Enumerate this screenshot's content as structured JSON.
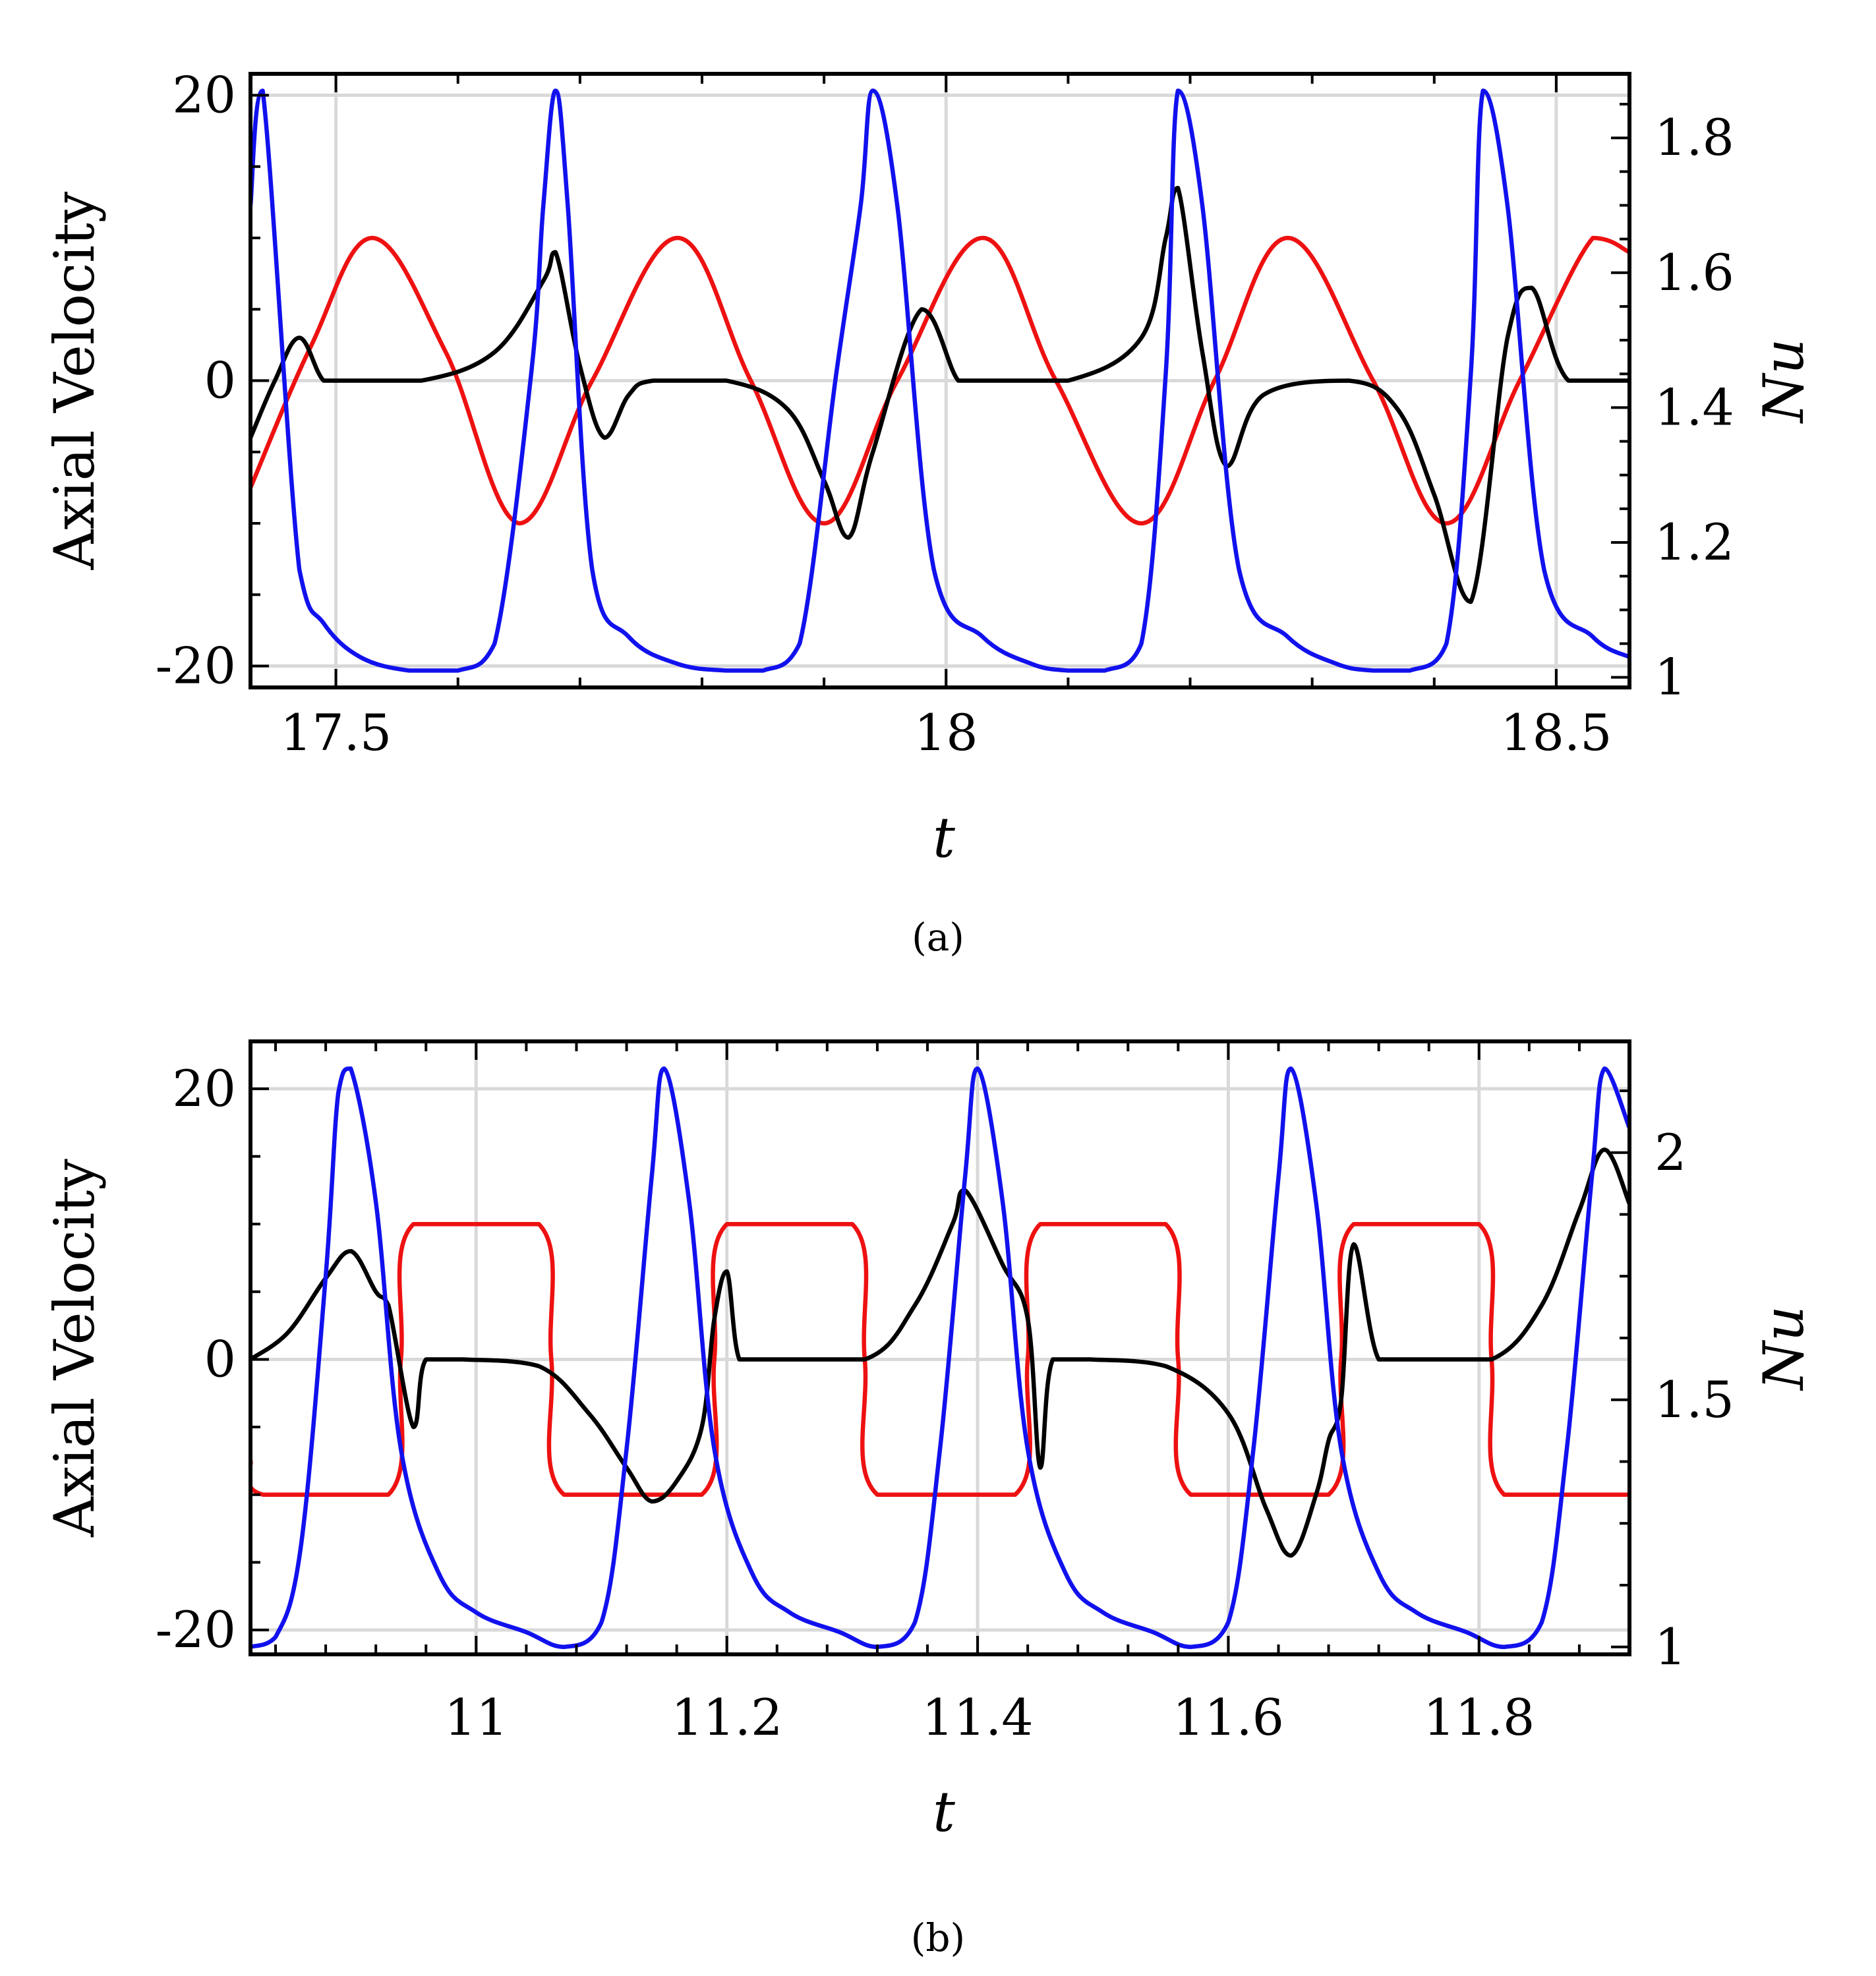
{
  "figure": {
    "captions": [
      "(a)",
      "(b)"
    ]
  },
  "chart_data": [
    {
      "id": "a",
      "type": "line",
      "caption": "(a)",
      "xlabel": "t",
      "ylabel_left": "Axial Velocity",
      "ylabel_right": "Nu",
      "xlim": [
        17.43,
        18.56
      ],
      "ylim_left": [
        -21.5,
        21.5
      ],
      "ylim_right": [
        0.985,
        1.895
      ],
      "x_ticks": [
        17.5,
        18,
        18.5
      ],
      "x_tick_labels": [
        "17.5",
        "18",
        "18.5"
      ],
      "y_left_ticks": [
        -20,
        0,
        20
      ],
      "y_left_tick_labels": [
        "-20",
        "0",
        "20"
      ],
      "y_right_ticks": [
        1,
        1.2,
        1.4,
        1.6,
        1.8
      ],
      "y_right_tick_labels": [
        "1",
        "1.2",
        "1.4",
        "1.6",
        "1.8"
      ],
      "grid": true,
      "series": [
        {
          "name": "red",
          "axis": "left",
          "color": "#ee1111",
          "x": [
            17.43,
            17.48,
            17.53,
            17.59,
            17.65,
            17.71,
            17.78,
            17.84,
            17.9,
            17.96,
            18.03,
            18.09,
            18.16,
            18.22,
            18.28,
            18.35,
            18.41,
            18.47,
            18.53,
            18.56
          ],
          "y": [
            -7.5,
            2.5,
            10,
            2,
            -10,
            0,
            10,
            0,
            -10,
            0,
            10,
            0,
            -10,
            0,
            10,
            0,
            -10,
            0,
            10,
            9
          ]
        },
        {
          "name": "black",
          "axis": "left",
          "color": "#000000",
          "x": [
            17.43,
            17.45,
            17.47,
            17.49,
            17.51,
            17.57,
            17.63,
            17.67,
            17.68,
            17.7,
            17.72,
            17.74,
            17.76,
            17.82,
            17.87,
            17.9,
            17.92,
            17.94,
            17.98,
            18.01,
            18.03,
            18.1,
            18.16,
            18.18,
            18.19,
            18.21,
            18.23,
            18.26,
            18.33,
            18.37,
            18.4,
            18.43,
            18.46,
            18.48,
            18.51,
            18.56
          ],
          "y": [
            -4,
            0,
            3,
            0,
            0,
            0,
            2,
            7,
            9,
            1,
            -4,
            -1,
            0,
            0,
            -2,
            -7,
            -11,
            -5,
            5,
            0,
            0,
            0,
            3,
            10,
            13.5,
            2,
            -6,
            -1,
            0,
            -2,
            -8,
            -15.5,
            3,
            6.5,
            0,
            0
          ]
        },
        {
          "name": "blue",
          "axis": "right",
          "color": "#1111ee",
          "x": [
            17.43,
            17.44,
            17.47,
            17.49,
            17.52,
            17.56,
            17.6,
            17.63,
            17.66,
            17.67,
            17.68,
            17.69,
            17.71,
            17.74,
            17.78,
            17.82,
            17.85,
            17.88,
            17.91,
            17.93,
            17.94,
            17.96,
            17.99,
            18.03,
            18.07,
            18.1,
            18.13,
            18.16,
            18.18,
            18.19,
            18.21,
            18.24,
            18.28,
            18.32,
            18.35,
            18.38,
            18.41,
            18.43,
            18.44,
            18.46,
            18.49,
            18.53,
            18.56
          ],
          "y": [
            1.7,
            1.87,
            1.16,
            1.08,
            1.03,
            1.01,
            1.01,
            1.05,
            1.45,
            1.7,
            1.87,
            1.7,
            1.16,
            1.06,
            1.02,
            1.01,
            1.01,
            1.05,
            1.45,
            1.7,
            1.87,
            1.7,
            1.16,
            1.06,
            1.02,
            1.01,
            1.01,
            1.05,
            1.45,
            1.87,
            1.7,
            1.16,
            1.06,
            1.02,
            1.01,
            1.01,
            1.05,
            1.45,
            1.87,
            1.7,
            1.16,
            1.06,
            1.03
          ]
        }
      ]
    },
    {
      "id": "b",
      "type": "line",
      "caption": "(b)",
      "xlabel": "t",
      "ylabel_left": "Axial Velocity",
      "ylabel_right": "Nu",
      "xlim": [
        10.82,
        11.92
      ],
      "ylim_left": [
        -21.8,
        23.5
      ],
      "ylim_right": [
        0.985,
        2.225
      ],
      "x_ticks": [
        11,
        11.2,
        11.4,
        11.6,
        11.8
      ],
      "x_tick_labels": [
        "11",
        "11.2",
        "11.4",
        "11.6",
        "11.8"
      ],
      "y_left_ticks": [
        -20,
        0,
        20
      ],
      "y_left_tick_labels": [
        "-20",
        "0",
        "20"
      ],
      "y_right_ticks": [
        1,
        1.5,
        2
      ],
      "y_right_tick_labels": [
        "1",
        "1.5",
        "2"
      ],
      "grid": true,
      "series": [
        {
          "name": "red",
          "axis": "left",
          "color": "#ee1111",
          "x": [
            10.82,
            10.83,
            10.93,
            10.94,
            10.95,
            11.05,
            11.06,
            11.07,
            11.18,
            11.19,
            11.2,
            11.3,
            11.31,
            11.32,
            11.43,
            11.44,
            11.45,
            11.55,
            11.56,
            11.57,
            11.68,
            11.69,
            11.7,
            11.8,
            11.81,
            11.82,
            11.92
          ],
          "y": [
            -7.5,
            -10,
            -10,
            0,
            10,
            10,
            0,
            -10,
            -10,
            0,
            10,
            10,
            0,
            -10,
            -10,
            0,
            10,
            10,
            0,
            -10,
            -10,
            0,
            10,
            10,
            0,
            -10,
            -10
          ]
        },
        {
          "name": "black",
          "axis": "left",
          "color": "#000000",
          "x": [
            10.82,
            10.85,
            10.88,
            10.9,
            10.92,
            10.93,
            10.95,
            10.96,
            10.99,
            11.05,
            11.09,
            11.12,
            11.14,
            11.16,
            11.18,
            11.19,
            11.2,
            11.21,
            11.23,
            11.31,
            11.35,
            11.38,
            11.39,
            11.42,
            11.44,
            11.45,
            11.46,
            11.49,
            11.55,
            11.6,
            11.63,
            11.65,
            11.67,
            11.68,
            11.69,
            11.7,
            11.72,
            11.75,
            11.81,
            11.85,
            11.88,
            11.9,
            11.92
          ],
          "y": [
            0,
            2,
            6,
            8,
            5,
            4,
            -5,
            0,
            0,
            -0.5,
            -4,
            -8,
            -10.5,
            -9,
            -5,
            3,
            6.5,
            0,
            0,
            0,
            4,
            10,
            12.5,
            7,
            3,
            -8,
            0,
            0,
            -0.5,
            -4,
            -11,
            -14.5,
            -10,
            -6,
            -3,
            8.5,
            0,
            0,
            0,
            4,
            11,
            15.5,
            11.5
          ]
        },
        {
          "name": "blue",
          "axis": "right",
          "color": "#1111ee",
          "x": [
            10.82,
            10.84,
            10.86,
            10.88,
            10.89,
            10.9,
            10.92,
            10.94,
            10.97,
            11.0,
            11.04,
            11.07,
            11.1,
            11.12,
            11.14,
            11.15,
            11.17,
            11.19,
            11.22,
            11.25,
            11.29,
            11.32,
            11.35,
            11.37,
            11.39,
            11.4,
            11.42,
            11.44,
            11.47,
            11.5,
            11.54,
            11.57,
            11.6,
            11.62,
            11.64,
            11.65,
            11.67,
            11.69,
            11.72,
            11.75,
            11.79,
            11.82,
            11.85,
            11.87,
            11.89,
            11.9,
            11.92
          ],
          "y": [
            1.0,
            1.02,
            1.2,
            1.75,
            2.12,
            2.17,
            1.9,
            1.4,
            1.15,
            1.07,
            1.03,
            1.0,
            1.05,
            1.4,
            1.95,
            2.17,
            1.9,
            1.4,
            1.15,
            1.07,
            1.03,
            1.0,
            1.05,
            1.4,
            1.95,
            2.17,
            1.9,
            1.4,
            1.15,
            1.07,
            1.03,
            1.0,
            1.05,
            1.4,
            1.95,
            2.17,
            1.9,
            1.4,
            1.15,
            1.07,
            1.03,
            1.0,
            1.05,
            1.4,
            1.95,
            2.17,
            2.05
          ]
        }
      ]
    }
  ]
}
